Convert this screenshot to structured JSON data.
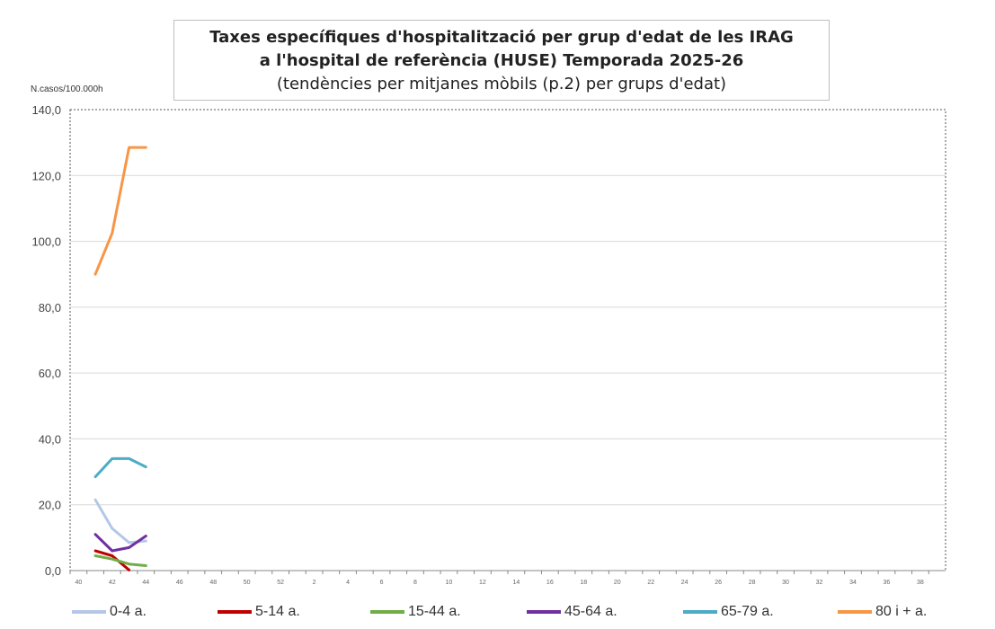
{
  "chart_data": {
    "type": "line",
    "title_lines": [
      "Taxes específiques d'hospitalització per grup d'edat de les IRAG",
      "a l'hospital de referència (HUSE) Temporada 2025-26",
      "(tendències per mitjanes mòbils (p.2) per grups d'edat)"
    ],
    "ylabel": "N.casos/100.000h",
    "ylim": [
      0,
      140
    ],
    "yticks": [
      "0,0",
      "20,0",
      "40,0",
      "60,0",
      "80,0",
      "100,0",
      "120,0",
      "140,0"
    ],
    "ytick_values": [
      0,
      20,
      40,
      60,
      80,
      100,
      120,
      140
    ],
    "x_categories": [
      "40",
      "41",
      "42",
      "43",
      "44",
      "45",
      "46",
      "47",
      "48",
      "49",
      "50",
      "51",
      "52",
      "1",
      "2",
      "3",
      "4",
      "5",
      "6",
      "7",
      "8",
      "9",
      "10",
      "11",
      "12",
      "13",
      "14",
      "15",
      "16",
      "17",
      "18",
      "19",
      "20",
      "21",
      "22",
      "23",
      "24",
      "25",
      "26",
      "27",
      "28",
      "29",
      "30",
      "31",
      "32",
      "33",
      "34",
      "35",
      "36",
      "37",
      "38",
      "39"
    ],
    "x_tick_labels": [
      "40",
      "42",
      "44",
      "46",
      "48",
      "50",
      "52",
      "2",
      "4",
      "6",
      "8",
      "10",
      "12",
      "14",
      "16",
      "18",
      "20",
      "22",
      "24",
      "26",
      "28",
      "30",
      "32",
      "34",
      "36",
      "38"
    ],
    "grid": "horizontal",
    "legend_position": "bottom",
    "series": [
      {
        "name": "0-4 a.",
        "color": "#b4c7e7",
        "values": [
          null,
          21.5,
          12.8,
          8.5,
          9.0
        ]
      },
      {
        "name": "5-14 a.",
        "color": "#c00000",
        "values": [
          null,
          6.0,
          4.5,
          0.2,
          null
        ]
      },
      {
        "name": "15-44 a.",
        "color": "#70ad47",
        "values": [
          null,
          4.5,
          3.5,
          2.0,
          1.5
        ]
      },
      {
        "name": "45-64 a.",
        "color": "#7030a0",
        "values": [
          null,
          11.0,
          6.0,
          7.0,
          10.5
        ]
      },
      {
        "name": "65-79 a.",
        "color": "#4bacc6",
        "values": [
          null,
          28.5,
          34.0,
          34.0,
          31.5
        ]
      },
      {
        "name": "80 i + a.",
        "color": "#f79646",
        "values": [
          null,
          90.0,
          102.5,
          128.5,
          128.5
        ]
      }
    ]
  }
}
